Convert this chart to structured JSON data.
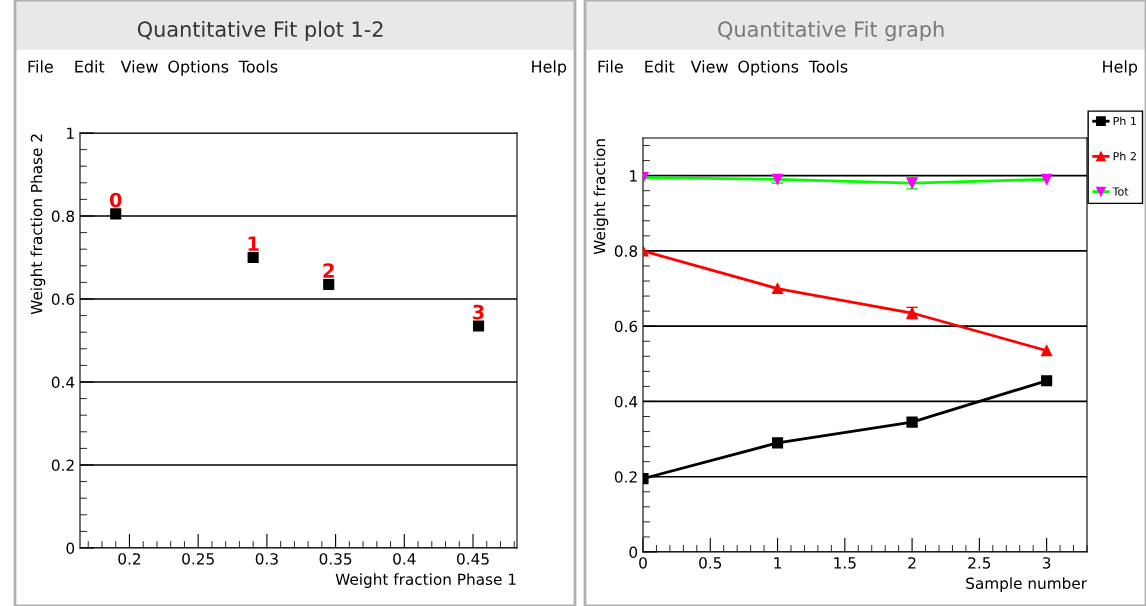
{
  "chart_data": [
    {
      "type": "scatter",
      "title": "Quantitative Fit plot 1-2",
      "xlabel": "Weight fraction Phase 1",
      "ylabel": "Weight fraction Phase 2",
      "annotations": [
        "File",
        "Edit",
        "View",
        "Options",
        "Tools",
        "Help",
        {
          "text": "0",
          "x": 0.19,
          "y": 0.805
        },
        {
          "text": "1",
          "x": 0.29,
          "y": 0.7
        },
        {
          "text": "2",
          "x": 0.345,
          "y": 0.635
        },
        {
          "text": "3",
          "x": 0.454,
          "y": 0.535
        }
      ],
      "x": [
        0.19,
        0.29,
        0.345,
        0.454
      ],
      "values": [
        0.805,
        0.7,
        0.635,
        0.535
      ],
      "color": "#000000",
      "marker": "square",
      "xlim": [
        0.164,
        0.482
      ],
      "xticks": [
        0.2,
        0.25,
        0.3,
        0.35,
        0.4,
        0.45
      ],
      "ylim": [
        0,
        1
      ],
      "yticks": [
        0,
        0.2,
        0.4,
        0.6,
        0.8,
        1
      ],
      "grid": "y"
    },
    {
      "type": "line",
      "title": "Quantitative Fit graph",
      "xlabel": "Sample number",
      "ylabel": "Weight fraction",
      "annotations": [
        "File",
        "Edit",
        "View",
        "Options",
        "Tools",
        "Help"
      ],
      "x": [
        0,
        1,
        2,
        3
      ],
      "series": [
        {
          "name": "Ph 1",
          "color": "#000000",
          "marker": "square",
          "values": [
            0.195,
            0.29,
            0.345,
            0.455
          ],
          "errors": [
            null,
            null,
            0.01,
            null
          ]
        },
        {
          "name": "Ph 2",
          "color": "#ff0000",
          "marker": "triangle",
          "values": [
            0.8,
            0.7,
            0.635,
            0.535
          ],
          "errors": [
            null,
            null,
            0.015,
            null
          ]
        },
        {
          "name": "Tot",
          "color": "#00ff00",
          "colors": [
            "#ff00ff",
            "#ff00ff",
            "#ff00ff",
            "#ff00ff"
          ],
          "marker": "triangle_down",
          "values": [
            0.995,
            0.99,
            0.98,
            0.99
          ],
          "errors": [
            null,
            0.01,
            0.015,
            null
          ]
        }
      ],
      "xlim": [
        0,
        3.3
      ],
      "xticks": [
        0,
        0.5,
        1,
        1.5,
        2,
        2.5,
        3
      ],
      "ylim": [
        0,
        1.1
      ],
      "yticks": [
        0,
        0.2,
        0.4,
        0.6,
        0.8,
        1
      ],
      "grid": "y",
      "legend": "top right"
    }
  ]
}
